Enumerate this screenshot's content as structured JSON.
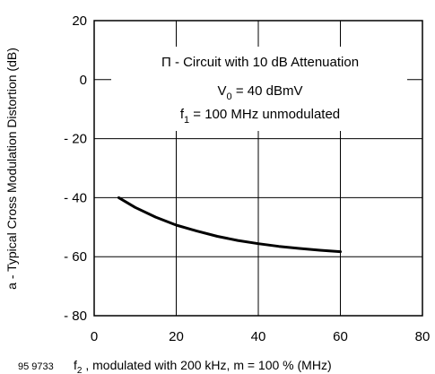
{
  "chart_data": {
    "type": "line",
    "xlabel": "f2 , modulated with 200 kHz, m = 100 % (MHz)",
    "ylabel": "a - Typical Cross Modulation Distortion (dB)",
    "xlim": [
      0,
      80
    ],
    "ylim": [
      -80,
      20
    ],
    "xticks": [
      0,
      20,
      40,
      60,
      80
    ],
    "yticks": [
      20,
      0,
      -20,
      -40,
      -60,
      -80
    ],
    "ytick_labels": [
      "20",
      "0",
      "- 20",
      "- 40",
      "- 60",
      "- 80"
    ],
    "grid": true,
    "series": [
      {
        "x": [
          6,
          10,
          15,
          20,
          25,
          30,
          35,
          40,
          45,
          50,
          55,
          60
        ],
        "y": [
          -40,
          -43.3,
          -46.6,
          -49.3,
          -51.3,
          -53.1,
          -54.5,
          -55.6,
          -56.5,
          -57.2,
          -57.8,
          -58.3
        ]
      }
    ],
    "annotations": {
      "line1": "Π - Circuit with 10 dB Attenuation",
      "line2_main": "V",
      "line2_sub": "0",
      "line2_rest": " = 40 dBmV",
      "line3_main": "f",
      "line3_sub": "1",
      "line3_rest": " = 100 MHz unmodulated"
    },
    "xlabel_parts": {
      "main": "f",
      "sub": "2",
      "rest": " , modulated with 200 kHz, m = 100 % (MHz)"
    },
    "figure_id": "95 9733",
    "colors": {
      "line": "#000000",
      "grid": "#000000",
      "background": "#ffffff"
    }
  }
}
